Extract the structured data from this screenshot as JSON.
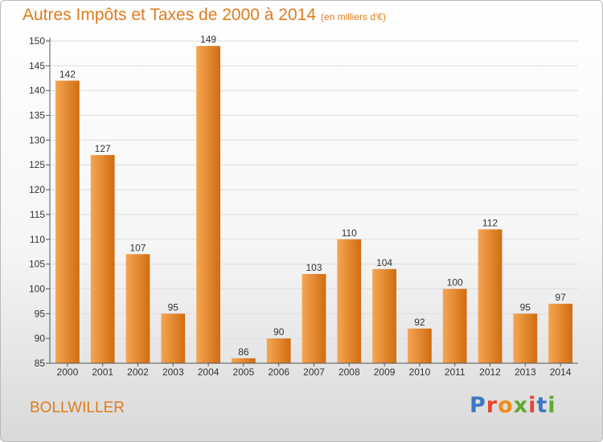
{
  "header": {
    "title": "Autres Impôts et Taxes de 2000 à 2014",
    "subtitle": "(en milliers d'€)"
  },
  "footer": {
    "location": "BOLLWILLER",
    "brand": "Proxiti",
    "brand_colors": [
      "#3b78c3",
      "#e6462f",
      "#f08c1a",
      "#5fa832",
      "#e6462f",
      "#3b78c3",
      "#5fa832"
    ]
  },
  "colors": {
    "title": "#e07b1c",
    "bar_light": "#f6a552",
    "bar_dark": "#d06d12",
    "axis": "#555555",
    "grid": "#dddddd"
  },
  "chart_data": {
    "type": "bar",
    "title": "Autres Impôts et Taxes de 2000 à 2014",
    "subtitle": "(en milliers d'€)",
    "categories": [
      "2000",
      "2001",
      "2002",
      "2003",
      "2004",
      "2005",
      "2006",
      "2007",
      "2008",
      "2009",
      "2010",
      "2011",
      "2012",
      "2013",
      "2014"
    ],
    "values": [
      142,
      127,
      107,
      95,
      149,
      86,
      90,
      103,
      110,
      104,
      92,
      100,
      112,
      95,
      97
    ],
    "data_labels": [
      "142",
      "127",
      "107",
      "95",
      "149",
      "86",
      "90",
      "103",
      "110",
      "104",
      "92",
      "100",
      "112",
      "95",
      "97"
    ],
    "yticks": [
      "85",
      "90",
      "95",
      "100",
      "105",
      "110",
      "115",
      "120",
      "125",
      "130",
      "135",
      "140",
      "145",
      "150"
    ],
    "ylim": [
      85,
      150
    ],
    "xlabel": "",
    "ylabel": "",
    "grid": true,
    "legend": "none"
  }
}
